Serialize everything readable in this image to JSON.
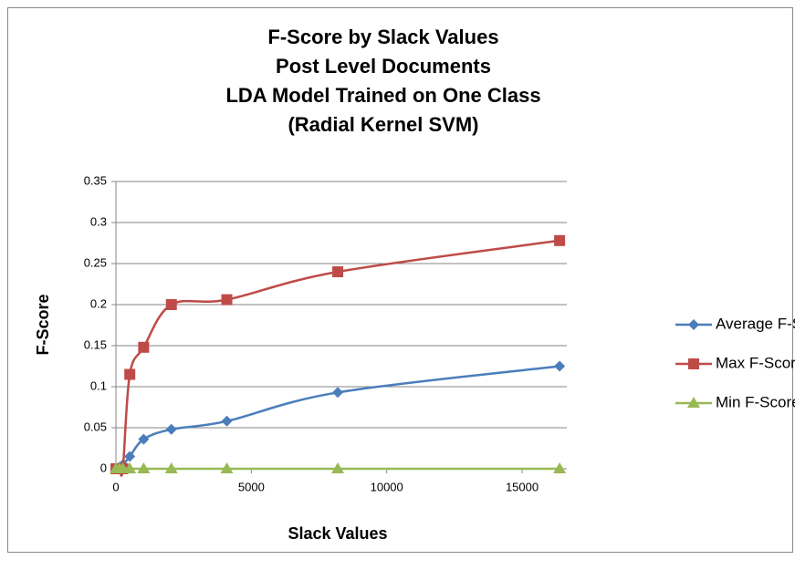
{
  "chart_data": {
    "type": "scatter-smooth",
    "title": [
      "F-Score by Slack Values",
      "Post Level Documents",
      "LDA Model Trained on One Class",
      "(Radial Kernel SVM)"
    ],
    "x_label": "Slack Values",
    "y_label": "F-Score",
    "x": [
      1,
      128,
      256,
      512,
      1024,
      2048,
      4096,
      8192,
      16384
    ],
    "series": [
      {
        "name": "Average F-Score",
        "color": "#4a7ebb",
        "marker": "diamond",
        "values": [
          0,
          0.002,
          0.005,
          0.015,
          0.036,
          0.048,
          0.058,
          0.093,
          0.125
        ]
      },
      {
        "name": "Max F-Score",
        "color": "#be4b48",
        "marker": "square",
        "values": [
          0,
          0,
          0,
          0.115,
          0.148,
          0.2,
          0.206,
          0.24,
          0.278
        ]
      },
      {
        "name": "Min F-Score",
        "color": "#98b954",
        "marker": "triangle",
        "values": [
          0,
          0,
          0,
          0,
          0,
          0,
          0,
          0,
          0
        ]
      }
    ],
    "xlim": [
      0,
      16650
    ],
    "xticks": [
      0,
      5000,
      10000,
      15000
    ],
    "ylim": [
      0,
      0.35
    ],
    "yticks": [
      0,
      0.05,
      0.1,
      0.15,
      0.2,
      0.25,
      0.3,
      0.35
    ],
    "grid": true,
    "legend": "right"
  }
}
